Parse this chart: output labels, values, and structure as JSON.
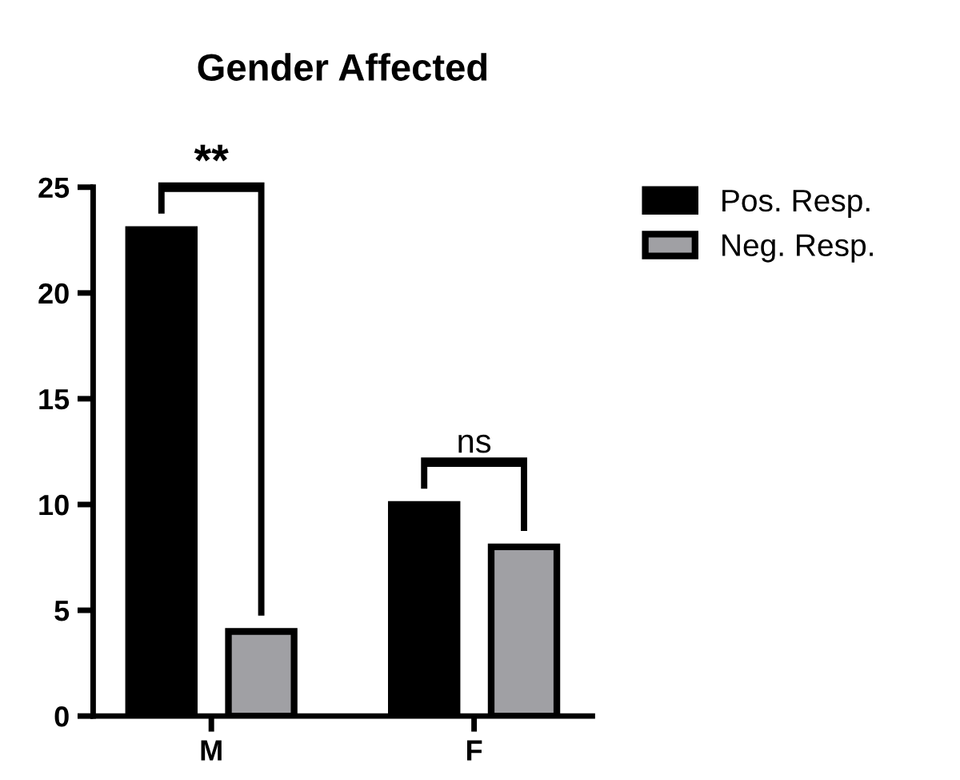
{
  "chart_data": {
    "type": "bar",
    "title": "Gender Affected",
    "categories": [
      "M",
      "F"
    ],
    "series": [
      {
        "name": "Pos. Resp.",
        "color": "#000000",
        "values": [
          23,
          10
        ]
      },
      {
        "name": "Neg. Resp.",
        "color": "#a0a0a4",
        "values": [
          4,
          8
        ]
      }
    ],
    "ylim": [
      0,
      25
    ],
    "yticks": [
      0,
      5,
      10,
      15,
      20,
      25
    ],
    "legend": "top right",
    "grid": false,
    "annotations": [
      "**",
      "ns"
    ]
  }
}
